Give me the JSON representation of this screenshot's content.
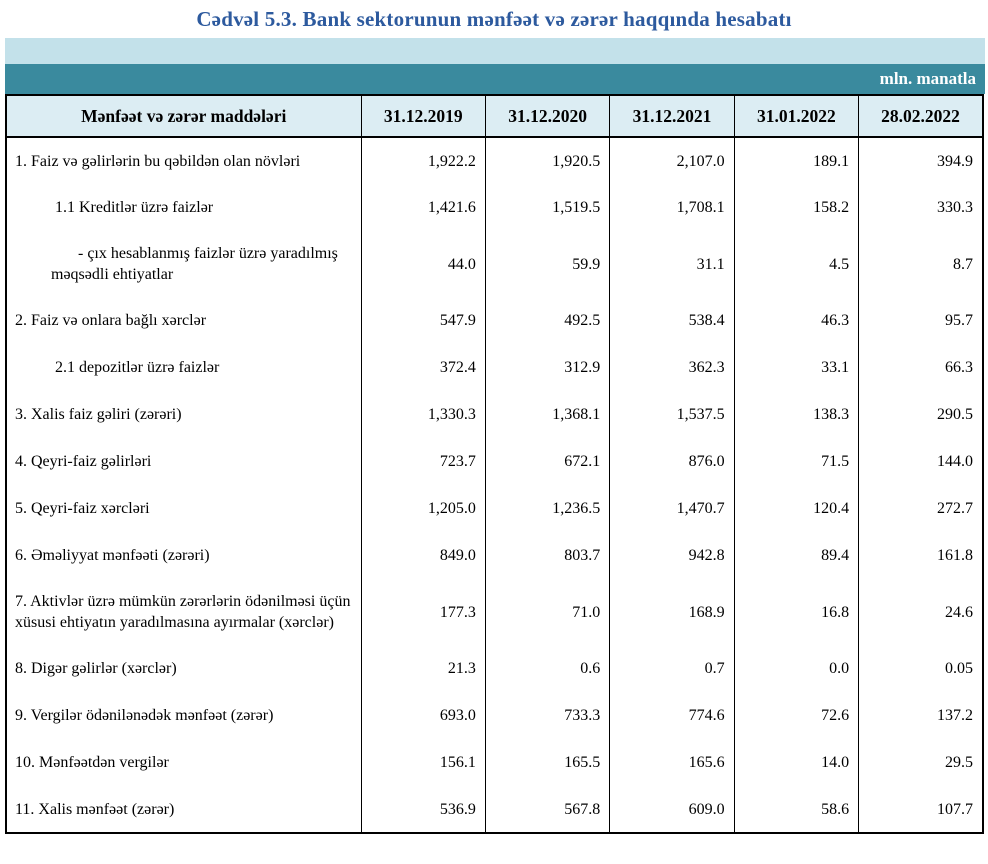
{
  "title": "Cədvəl 5.3. Bank sektorunun mənfəət və zərər haqqında hesabatı",
  "unit_label": "mln. manatla",
  "colors": {
    "title_blue": "#2d5a9e",
    "band_light": "#c3e1ea",
    "band_teal": "#3a8a9e",
    "header_bg": "#dcedf3"
  },
  "table": {
    "columns": [
      "Mənfəət və zərər maddələri",
      "31.12.2019",
      "31.12.2020",
      "31.12.2021",
      "31.01.2022",
      "28.02.2022"
    ],
    "rows": [
      {
        "label": "1. Faiz və gəlirlərin bu qəbildən olan növləri",
        "indent": 0,
        "values": [
          "1,922.2",
          "1,920.5",
          "2,107.0",
          "189.1",
          "394.9"
        ]
      },
      {
        "label": "1.1 Kreditlər üzrə faizlər",
        "indent": 1,
        "values": [
          "1,421.6",
          "1,519.5",
          "1,708.1",
          "158.2",
          "330.3"
        ]
      },
      {
        "label": "- çıx hesablanmış faizlər üzrə yaradılmış məqsədli ehtiyatlar",
        "indent": 2,
        "values": [
          "44.0",
          "59.9",
          "31.1",
          "4.5",
          "8.7"
        ]
      },
      {
        "label": "2. Faiz və onlara bağlı xərclər",
        "indent": 0,
        "values": [
          "547.9",
          "492.5",
          "538.4",
          "46.3",
          "95.7"
        ]
      },
      {
        "label": "2.1 depozitlər üzrə faizlər",
        "indent": 1,
        "values": [
          "372.4",
          "312.9",
          "362.3",
          "33.1",
          "66.3"
        ]
      },
      {
        "label": "3. Xalis faiz gəliri (zərəri)",
        "indent": 0,
        "values": [
          "1,330.3",
          "1,368.1",
          "1,537.5",
          "138.3",
          "290.5"
        ]
      },
      {
        "label": "4. Qeyri-faiz gəlirləri",
        "indent": 0,
        "values": [
          "723.7",
          "672.1",
          "876.0",
          "71.5",
          "144.0"
        ]
      },
      {
        "label": "5. Qeyri-faiz xərcləri",
        "indent": 0,
        "values": [
          "1,205.0",
          "1,236.5",
          "1,470.7",
          "120.4",
          "272.7"
        ]
      },
      {
        "label": "6. Əməliyyat mənfəəti (zərəri)",
        "indent": 0,
        "values": [
          "849.0",
          "803.7",
          "942.8",
          "89.4",
          "161.8"
        ]
      },
      {
        "label": "7. Aktivlər üzrə mümkün zərərlərin ödənilməsi üçün xüsusi ehtiyatın yaradılmasına ayırmalar (xərclər)",
        "indent": 0,
        "values": [
          "177.3",
          "71.0",
          "168.9",
          "16.8",
          "24.6"
        ]
      },
      {
        "label": "8. Digər gəlirlər (xərclər)",
        "indent": 0,
        "values": [
          "21.3",
          "0.6",
          "0.7",
          "0.0",
          "0.05"
        ]
      },
      {
        "label": "9. Vergilər ödənilənədək mənfəət (zərər)",
        "indent": 0,
        "values": [
          "693.0",
          "733.3",
          "774.6",
          "72.6",
          "137.2"
        ]
      },
      {
        "label": "10. Mənfəətdən vergilər",
        "indent": 0,
        "values": [
          "156.1",
          "165.5",
          "165.6",
          "14.0",
          "29.5"
        ]
      },
      {
        "label": "11. Xalis mənfəət (zərər)",
        "indent": 0,
        "values": [
          "536.9",
          "567.8",
          "609.0",
          "58.6",
          "107.7"
        ]
      }
    ]
  }
}
